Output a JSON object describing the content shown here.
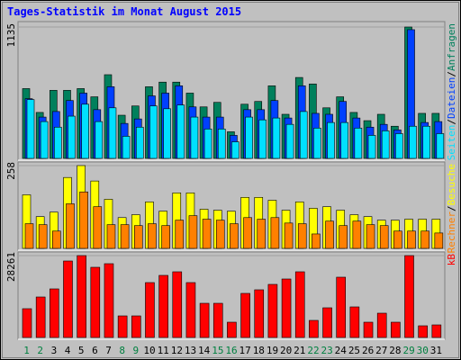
{
  "chart_data": [
    {
      "type": "bar",
      "title": "Tages-Statistik im Monat August 2015",
      "ylim": [
        0,
        1135
      ],
      "yticks": [
        1135
      ],
      "legend_separator": "/",
      "series": [
        {
          "name": "Anfragen",
          "color": "#00805c",
          "values": [
            603,
            397,
            588,
            588,
            603,
            532,
            723,
            373,
            453,
            619,
            659,
            659,
            564,
            445,
            484,
            230,
            468,
            492,
            627,
            381,
            699,
            643,
            437,
            532,
            397,
            326,
            381,
            278,
            1135,
            389,
            389
          ]
        },
        {
          "name": "Dateien",
          "color": "#0040ff",
          "values": [
            516,
            357,
            405,
            500,
            564,
            421,
            619,
            302,
            341,
            540,
            564,
            627,
            445,
            357,
            357,
            199,
            421,
            421,
            500,
            349,
            627,
            389,
            381,
            492,
            349,
            270,
            294,
            246,
            1112,
            310,
            318
          ]
        },
        {
          "name": "Seiten",
          "color": "#00e0ff",
          "values": [
            508,
            318,
            270,
            365,
            468,
            318,
            437,
            191,
            270,
            453,
            429,
            461,
            357,
            254,
            254,
            143,
            357,
            333,
            349,
            294,
            405,
            262,
            310,
            310,
            262,
            199,
            238,
            214,
            278,
            278,
            214
          ]
        }
      ]
    },
    {
      "type": "bar",
      "ylim": [
        0,
        258
      ],
      "yticks": [
        258
      ],
      "legend_separator": "/",
      "series": [
        {
          "name": "Besuche",
          "color": "#ffff00",
          "values": [
            167,
            99,
            113,
            221,
            258,
            210,
            153,
            96,
            105,
            145,
            116,
            173,
            173,
            122,
            119,
            116,
            159,
            159,
            150,
            119,
            145,
            125,
            130,
            119,
            105,
            99,
            88,
            88,
            91,
            91,
            91
          ]
        },
        {
          "name": "Rechner",
          "color": "#ff8000",
          "values": [
            77,
            74,
            54,
            139,
            176,
            130,
            74,
            74,
            71,
            77,
            71,
            88,
            102,
            91,
            88,
            77,
            96,
            91,
            96,
            79,
            77,
            45,
            85,
            71,
            85,
            74,
            71,
            54,
            54,
            54,
            48
          ]
        }
      ]
    },
    {
      "type": "bar",
      "ylim": [
        0,
        28261
      ],
      "yticks": [
        28261
      ],
      "categories": [
        "1",
        "2",
        "3",
        "4",
        "5",
        "6",
        "7",
        "8",
        "9",
        "10",
        "11",
        "12",
        "13",
        "14",
        "15",
        "16",
        "17",
        "18",
        "19",
        "20",
        "21",
        "22",
        "23",
        "24",
        "25",
        "26",
        "27",
        "28",
        "29",
        "30",
        "31"
      ],
      "weekend_categories": [
        "1",
        "2",
        "8",
        "9",
        "15",
        "16",
        "22",
        "23",
        "29",
        "30"
      ],
      "weekend_color": "#008040",
      "series": [
        {
          "name": "kB",
          "color": "#ff0000",
          "values": [
            9940,
            13977,
            16772,
            26400,
            28261,
            24227,
            25469,
            7454,
            7454,
            18947,
            21432,
            22673,
            18947,
            11802,
            11802,
            5280,
            15219,
            16462,
            18325,
            20189,
            22673,
            5901,
            10250,
            20810,
            10560,
            5280,
            8386,
            5280,
            28261,
            4038,
            4348
          ]
        }
      ]
    }
  ]
}
